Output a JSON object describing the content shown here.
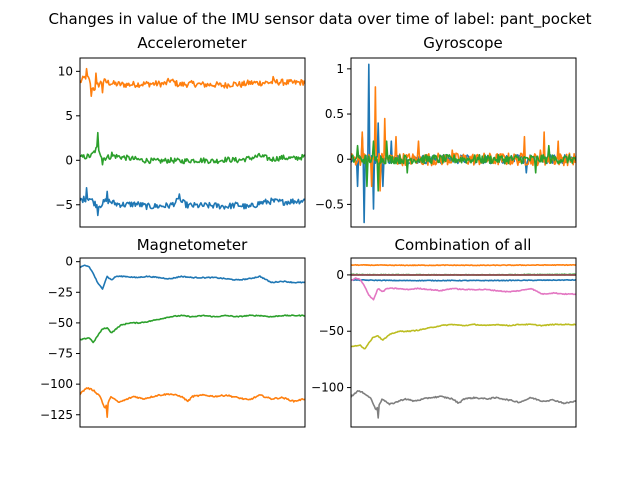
{
  "figure_title": "Changes in value of the IMU sensor data over time of label: pant_pocket",
  "colors": [
    "#1f77b4",
    "#ff7f0e",
    "#2ca02c",
    "#d62728",
    "#9467bd",
    "#8c564b",
    "#e377c2",
    "#7f7f7f",
    "#bcbd22"
  ],
  "chart_data": [
    {
      "type": "line",
      "title": "Accelerometer",
      "xlabel": "",
      "ylabel": "",
      "xlim": [
        0,
        100
      ],
      "ylim": [
        -7.5,
        11.5
      ],
      "xticks_visible": false,
      "yticks": [
        10,
        5,
        0,
        -5
      ],
      "grid": false,
      "series": [
        {
          "color": "#ff7f0e",
          "noise": 0.35,
          "spikes": [
            [
              3,
              10.3
            ],
            [
              5,
              7.2
            ],
            [
              7,
              9.8
            ],
            [
              10,
              7.6
            ],
            [
              86,
              9.4
            ]
          ],
          "x": [
            0,
            3,
            6,
            10,
            15,
            20,
            30,
            38,
            40,
            44,
            50,
            55,
            60,
            64,
            68,
            72,
            75,
            80,
            88,
            95,
            100
          ],
          "y": [
            8.8,
            9.5,
            8.0,
            8.9,
            8.6,
            8.5,
            8.6,
            8.6,
            9.0,
            8.5,
            8.6,
            8.5,
            8.5,
            8.4,
            8.6,
            8.5,
            8.7,
            8.7,
            8.8,
            8.7,
            8.8
          ]
        },
        {
          "color": "#2ca02c",
          "noise": 0.3,
          "spikes": [
            [
              8,
              3.1
            ],
            [
              10,
              -0.5
            ],
            [
              14,
              0.9
            ]
          ],
          "x": [
            0,
            5,
            8,
            10,
            15,
            20,
            28,
            35,
            40,
            45,
            50,
            55,
            60,
            65,
            70,
            75,
            80,
            85,
            90,
            95,
            100
          ],
          "y": [
            0.3,
            0.5,
            1.5,
            0.2,
            0.5,
            0.3,
            0.0,
            -0.1,
            0.0,
            -0.1,
            0.0,
            0.0,
            -0.1,
            0.1,
            0.0,
            0.2,
            0.5,
            0.1,
            0.3,
            0.2,
            0.4
          ]
        },
        {
          "color": "#1f77b4",
          "noise": 0.35,
          "spikes": [
            [
              3,
              -3.1
            ],
            [
              8,
              -6.2
            ],
            [
              12,
              -3.5
            ],
            [
              44,
              -3.8
            ]
          ],
          "x": [
            0,
            4,
            8,
            12,
            16,
            20,
            25,
            30,
            40,
            44,
            48,
            55,
            60,
            65,
            70,
            75,
            80,
            85,
            90,
            95,
            100
          ],
          "y": [
            -4.5,
            -4.2,
            -5.2,
            -4.5,
            -4.9,
            -5.0,
            -4.9,
            -5.2,
            -5.1,
            -4.5,
            -5.1,
            -5.1,
            -5.1,
            -5.2,
            -5.0,
            -5.3,
            -4.8,
            -4.6,
            -4.7,
            -4.6,
            -4.5
          ]
        }
      ]
    },
    {
      "type": "line",
      "title": "Gyroscope",
      "xlabel": "",
      "ylabel": "",
      "xlim": [
        0,
        100
      ],
      "ylim": [
        -0.75,
        1.12
      ],
      "xticks_visible": false,
      "yticks": [
        1.0,
        0.5,
        0.0,
        -0.5
      ],
      "grid": false,
      "series": [
        {
          "color": "#1f77b4",
          "noise": 0.05,
          "spikes": [
            [
              3,
              -0.3
            ],
            [
              5,
              0.25
            ],
            [
              6,
              -0.7
            ],
            [
              8,
              1.05
            ],
            [
              10,
              -0.55
            ],
            [
              12,
              0.4
            ],
            [
              14,
              -0.3
            ],
            [
              18,
              0.2
            ],
            [
              78,
              -0.15
            ]
          ],
          "x": [
            0,
            3,
            10,
            15,
            20,
            30,
            40,
            45,
            50,
            60,
            70,
            75,
            80,
            85,
            90,
            95,
            100
          ],
          "y": [
            0.0,
            0.0,
            0.0,
            0.0,
            0.0,
            0.0,
            0.0,
            0.0,
            0.0,
            0.0,
            0.0,
            0.0,
            0.0,
            0.0,
            0.0,
            0.0,
            0.0
          ]
        },
        {
          "color": "#ff7f0e",
          "noise": 0.07,
          "spikes": [
            [
              5,
              0.3
            ],
            [
              9,
              -0.3
            ],
            [
              11,
              0.8
            ],
            [
              13,
              -0.35
            ],
            [
              15,
              0.45
            ],
            [
              20,
              0.25
            ],
            [
              30,
              0.2
            ],
            [
              45,
              0.1
            ],
            [
              77,
              0.25
            ],
            [
              84,
              0.1
            ],
            [
              86,
              0.3
            ],
            [
              92,
              0.2
            ]
          ],
          "x": [
            0,
            10,
            20,
            30,
            40,
            50,
            60,
            70,
            75,
            80,
            85,
            90,
            95,
            100
          ],
          "y": [
            0.0,
            0.0,
            0.0,
            0.0,
            0.0,
            0.0,
            0.0,
            0.0,
            0.0,
            0.0,
            0.0,
            0.0,
            0.0,
            0.0
          ]
        },
        {
          "color": "#2ca02c",
          "noise": 0.05,
          "spikes": [
            [
              3,
              0.15
            ],
            [
              7,
              -0.3
            ],
            [
              10,
              0.2
            ],
            [
              12,
              -0.35
            ],
            [
              16,
              0.2
            ],
            [
              25,
              -0.15
            ],
            [
              82,
              -0.15
            ],
            [
              88,
              0.15
            ]
          ],
          "x": [
            0,
            10,
            20,
            30,
            40,
            50,
            60,
            70,
            80,
            90,
            100
          ],
          "y": [
            0.0,
            0.0,
            0.0,
            0.0,
            0.0,
            0.0,
            0.0,
            0.0,
            0.0,
            0.0,
            0.0
          ]
        }
      ]
    },
    {
      "type": "line",
      "title": "Magnetometer",
      "xlabel": "",
      "ylabel": "",
      "xlim": [
        0,
        100
      ],
      "ylim": [
        -135,
        3
      ],
      "xticks_visible": false,
      "yticks": [
        0,
        -25,
        -50,
        -75,
        -100,
        -125
      ],
      "grid": false,
      "series": [
        {
          "color": "#1f77b4",
          "noise": 0.4,
          "spikes": [],
          "x": [
            0,
            2,
            4,
            6,
            8,
            10,
            12,
            14,
            16,
            20,
            25,
            30,
            40,
            45,
            50,
            55,
            60,
            65,
            70,
            75,
            80,
            85,
            90,
            95,
            100
          ],
          "y": [
            -5,
            -3,
            -4,
            -10,
            -18,
            -22,
            -12,
            -15,
            -12,
            -12,
            -13,
            -12,
            -14,
            -12,
            -13,
            -13,
            -13,
            -14,
            -15,
            -14,
            -12,
            -17,
            -16,
            -17,
            -17
          ]
        },
        {
          "color": "#2ca02c",
          "noise": 0.4,
          "spikes": [],
          "x": [
            0,
            4,
            6,
            8,
            10,
            12,
            14,
            18,
            22,
            26,
            30,
            35,
            40,
            45,
            50,
            55,
            60,
            65,
            70,
            75,
            80,
            85,
            90,
            95,
            100
          ],
          "y": [
            -64,
            -62,
            -66,
            -60,
            -55,
            -54,
            -58,
            -52,
            -50,
            -50,
            -49,
            -47,
            -45,
            -44,
            -45,
            -44,
            -45,
            -44,
            -45,
            -44,
            -44,
            -45,
            -44,
            -44,
            -44
          ]
        },
        {
          "color": "#ff7f0e",
          "noise": 0.6,
          "spikes": [
            [
              12,
              -127
            ]
          ],
          "x": [
            0,
            3,
            6,
            9,
            11,
            14,
            17,
            20,
            24,
            28,
            35,
            40,
            45,
            48,
            50,
            55,
            60,
            65,
            70,
            75,
            80,
            85,
            90,
            95,
            100
          ],
          "y": [
            -108,
            -103,
            -105,
            -110,
            -120,
            -110,
            -115,
            -113,
            -110,
            -112,
            -109,
            -108,
            -110,
            -114,
            -110,
            -109,
            -110,
            -109,
            -111,
            -113,
            -109,
            -112,
            -111,
            -114,
            -112
          ]
        }
      ]
    },
    {
      "type": "line",
      "title": "Combination of all",
      "xlabel": "",
      "ylabel": "",
      "xlim": [
        0,
        100
      ],
      "ylim": [
        -135,
        15
      ],
      "xticks_visible": false,
      "yticks": [
        0,
        -50,
        -100
      ],
      "grid": false,
      "series": [
        {
          "color": "#1f77b4",
          "noise": 0.3,
          "spikes": [],
          "x": [
            0,
            20,
            40,
            60,
            80,
            100
          ],
          "y": [
            -4.5,
            -5,
            -5,
            -5,
            -4.8,
            -4.5
          ]
        },
        {
          "color": "#ff7f0e",
          "noise": 0.3,
          "spikes": [],
          "x": [
            0,
            20,
            40,
            60,
            80,
            100
          ],
          "y": [
            8.8,
            8.5,
            8.6,
            8.5,
            8.7,
            8.8
          ]
        },
        {
          "color": "#2ca02c",
          "noise": 0.3,
          "spikes": [],
          "x": [
            0,
            20,
            40,
            60,
            80,
            100
          ],
          "y": [
            0.3,
            0.1,
            0.0,
            0.0,
            0.3,
            0.4
          ]
        },
        {
          "color": "#d62728",
          "noise": 0.05,
          "spikes": [],
          "x": [
            0,
            20,
            40,
            60,
            80,
            100
          ],
          "y": [
            0.0,
            0.0,
            0.0,
            0.0,
            0.0,
            0.0
          ]
        },
        {
          "color": "#9467bd",
          "noise": 0.05,
          "spikes": [],
          "x": [
            0,
            20,
            40,
            60,
            80,
            100
          ],
          "y": [
            0.0,
            0.0,
            0.0,
            0.0,
            0.0,
            0.0
          ]
        },
        {
          "color": "#8c564b",
          "noise": 0.05,
          "spikes": [],
          "x": [
            0,
            20,
            40,
            60,
            80,
            100
          ],
          "y": [
            0.0,
            0.0,
            0.0,
            0.0,
            0.0,
            0.0
          ]
        },
        {
          "color": "#e377c2",
          "noise": 0.4,
          "spikes": [],
          "x": [
            0,
            2,
            4,
            6,
            8,
            10,
            12,
            14,
            16,
            20,
            25,
            30,
            40,
            45,
            50,
            55,
            60,
            65,
            70,
            75,
            80,
            85,
            90,
            95,
            100
          ],
          "y": [
            -5,
            -3,
            -4,
            -10,
            -18,
            -22,
            -12,
            -15,
            -12,
            -12,
            -13,
            -12,
            -14,
            -12,
            -13,
            -13,
            -13,
            -14,
            -15,
            -14,
            -12,
            -17,
            -16,
            -17,
            -17
          ]
        },
        {
          "color": "#bcbd22",
          "noise": 0.4,
          "spikes": [],
          "x": [
            0,
            4,
            6,
            8,
            10,
            12,
            14,
            18,
            22,
            26,
            30,
            35,
            40,
            45,
            50,
            55,
            60,
            65,
            70,
            75,
            80,
            85,
            90,
            95,
            100
          ],
          "y": [
            -64,
            -62,
            -66,
            -60,
            -55,
            -54,
            -58,
            -52,
            -50,
            -50,
            -49,
            -47,
            -45,
            -44,
            -45,
            -44,
            -45,
            -44,
            -45,
            -44,
            -44,
            -45,
            -44,
            -44,
            -44
          ]
        },
        {
          "color": "#7f7f7f",
          "noise": 0.6,
          "spikes": [
            [
              12,
              -127
            ]
          ],
          "x": [
            0,
            3,
            6,
            9,
            11,
            14,
            17,
            20,
            24,
            28,
            35,
            40,
            45,
            48,
            50,
            55,
            60,
            65,
            70,
            75,
            80,
            85,
            90,
            95,
            100
          ],
          "y": [
            -108,
            -103,
            -105,
            -110,
            -120,
            -110,
            -115,
            -113,
            -110,
            -112,
            -109,
            -108,
            -110,
            -114,
            -110,
            -109,
            -110,
            -109,
            -111,
            -113,
            -109,
            -112,
            -111,
            -114,
            -112
          ]
        }
      ]
    }
  ]
}
